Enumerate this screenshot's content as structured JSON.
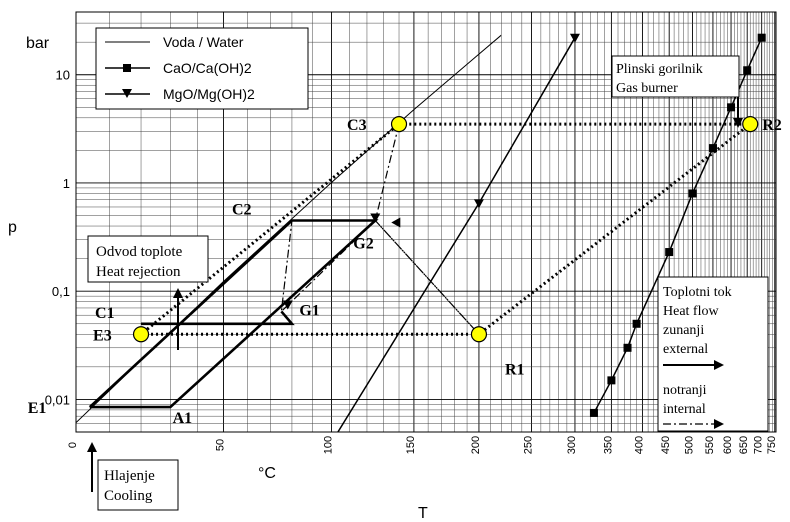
{
  "chart_data": {
    "type": "line",
    "title": "",
    "xlabel": "T",
    "ylabel": "p",
    "y_unit": "bar",
    "x_unit": "°C",
    "x_scale": "reciprocal (1/T absolute), labels in °C",
    "y_scale": "log",
    "ylim": [
      0.005,
      38
    ],
    "xlim": [
      0,
      755
    ],
    "grid": true,
    "legend_position": "top-left",
    "x_ticks": [
      "0",
      "50",
      "100",
      "150",
      "200",
      "250",
      "300",
      "350",
      "400",
      "450",
      "500",
      "550",
      "600",
      "650",
      "700",
      "750"
    ],
    "y_ticks": [
      "0,01",
      "0,1",
      "1",
      "10"
    ],
    "series": [
      {
        "name": "Voda / Water",
        "marker": "none",
        "x": [
          0,
          20,
          50,
          100,
          150,
          200,
          220
        ],
        "y": [
          0.0061,
          0.023,
          0.123,
          1.01,
          4.76,
          15.5,
          23.2
        ]
      },
      {
        "name": "CaO/Ca(OH)2",
        "marker": "square",
        "x": [
          325,
          350,
          375,
          390,
          450,
          500,
          550,
          600,
          650,
          700
        ],
        "y": [
          0.0075,
          0.015,
          0.03,
          0.05,
          0.23,
          0.8,
          2.1,
          5,
          11,
          22
        ]
      },
      {
        "name": "MgO/Mg(OH)2",
        "marker": "triangle-down",
        "x": [
          100,
          200,
          300
        ],
        "y": [
          0.004,
          0.65,
          22
        ]
      }
    ],
    "points": [
      {
        "label": "E1",
        "x": 4,
        "y": 0.0085
      },
      {
        "label": "A1",
        "x": 28,
        "y": 0.0085
      },
      {
        "label": "E3",
        "x": 20,
        "y": 0.04
      },
      {
        "label": "C1",
        "x": 20,
        "y": 0.05
      },
      {
        "label": "C2",
        "x": 80,
        "y": 0.45
      },
      {
        "label": "G1",
        "x": 75,
        "y": 0.065
      },
      {
        "label": "G2",
        "x": 125,
        "y": 0.45
      },
      {
        "label": "C3",
        "x": 140,
        "y": 3.5
      },
      {
        "label": "R1",
        "x": 200,
        "y": 0.04
      },
      {
        "label": "R2",
        "x": 660,
        "y": 3.5
      }
    ],
    "highlighted_points": [
      {
        "x": 20,
        "y": 0.04
      },
      {
        "x": 140,
        "y": 3.5
      },
      {
        "x": 200,
        "y": 0.04
      },
      {
        "x": 660,
        "y": 3.5
      }
    ],
    "cycle_solid": [
      [
        4,
        0.0085
      ],
      [
        80,
        0.45
      ],
      [
        125,
        0.45
      ],
      [
        30,
        0.0085
      ],
      [
        4,
        0.0085
      ]
    ],
    "cycle_solid_inner": [
      [
        20,
        0.05
      ],
      [
        80,
        0.05
      ],
      [
        75,
        0.065
      ]
    ],
    "flow_external": [
      [
        20,
        0.04
      ],
      [
        200,
        0.04
      ],
      [
        660,
        3.5
      ],
      [
        140,
        3.5
      ],
      [
        20,
        0.04
      ]
    ],
    "flow_internal": [
      [
        140,
        3.5
      ],
      [
        125,
        0.45
      ],
      [
        200,
        0.04
      ],
      [
        125,
        0.45
      ],
      [
        75,
        0.065
      ],
      [
        80,
        0.45
      ]
    ],
    "annotations": {
      "heat_rejection": [
        "Odvod toplote",
        "Heat rejection"
      ],
      "cooling": [
        "Hlajenje",
        "Cooling"
      ],
      "gas_burner": [
        "Plinski gorilnik",
        "Gas burner"
      ],
      "heat_flow_box": [
        "Toplotni tok",
        "Heat flow",
        "zunanji",
        "external",
        "notranji",
        "internal"
      ]
    },
    "colors": {
      "lines": "#000000",
      "point_fill": "#ffff00",
      "background": "#ffffff"
    }
  }
}
